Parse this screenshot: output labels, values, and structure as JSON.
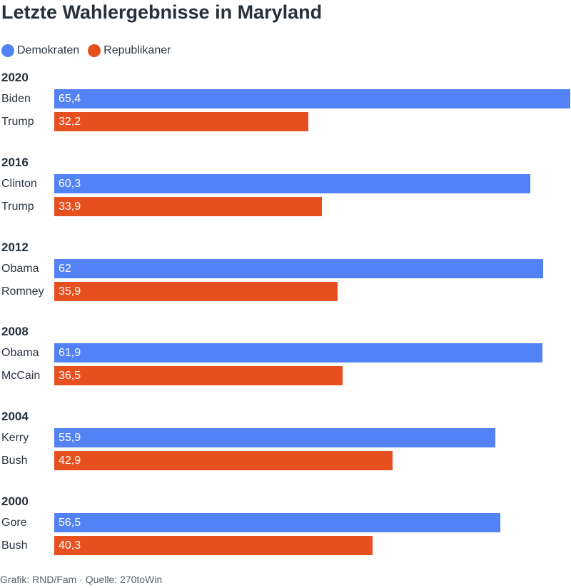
{
  "colors": {
    "dem": "#5282f5",
    "rep": "#e64f1e"
  },
  "chart_data": {
    "type": "bar",
    "orientation": "horizontal",
    "title": "Letzte Wahlergebnisse in Maryland",
    "legend": [
      {
        "name": "Demokraten",
        "color": "#5282f5"
      },
      {
        "name": "Republikaner",
        "color": "#e64f1e"
      }
    ],
    "xlim": [
      0,
      65.4
    ],
    "groups": [
      {
        "year": "2020",
        "entries": [
          {
            "candidate": "Biden",
            "party": "dem",
            "value": 65.4,
            "label": "65,4"
          },
          {
            "candidate": "Trump",
            "party": "rep",
            "value": 32.2,
            "label": "32,2"
          }
        ]
      },
      {
        "year": "2016",
        "entries": [
          {
            "candidate": "Clinton",
            "party": "dem",
            "value": 60.3,
            "label": "60,3"
          },
          {
            "candidate": "Trump",
            "party": "rep",
            "value": 33.9,
            "label": "33,9"
          }
        ]
      },
      {
        "year": "2012",
        "entries": [
          {
            "candidate": "Obama",
            "party": "dem",
            "value": 62,
            "label": "62"
          },
          {
            "candidate": "Romney",
            "party": "rep",
            "value": 35.9,
            "label": "35,9"
          }
        ]
      },
      {
        "year": "2008",
        "entries": [
          {
            "candidate": "Obama",
            "party": "dem",
            "value": 61.9,
            "label": "61,9"
          },
          {
            "candidate": "McCain",
            "party": "rep",
            "value": 36.5,
            "label": "36,5"
          }
        ]
      },
      {
        "year": "2004",
        "entries": [
          {
            "candidate": "Kerry",
            "party": "dem",
            "value": 55.9,
            "label": "55,9"
          },
          {
            "candidate": "Bush",
            "party": "rep",
            "value": 42.9,
            "label": "42,9"
          }
        ]
      },
      {
        "year": "2000",
        "entries": [
          {
            "candidate": "Gore",
            "party": "dem",
            "value": 56.5,
            "label": "56,5"
          },
          {
            "candidate": "Bush",
            "party": "rep",
            "value": 40.3,
            "label": "40,3"
          }
        ]
      }
    ]
  },
  "footer": "Grafik: RND/Fam · Quelle: 270toWin"
}
